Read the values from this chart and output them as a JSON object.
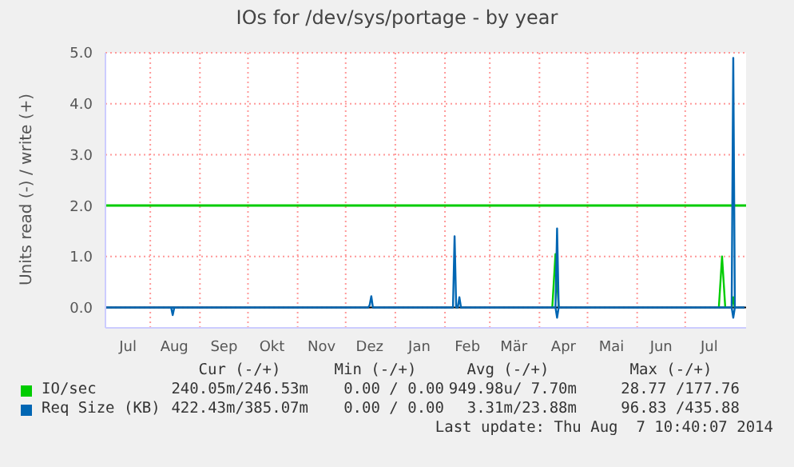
{
  "chart_data": {
    "type": "line",
    "title": "IOs for /dev/sys/portage - by year",
    "ylabel": "Units read (-) / write (+)",
    "xlim": [
      "2013-07-04",
      "2014-08-08"
    ],
    "xticks": [
      {
        "value": "2013-07-18",
        "label": "Jul"
      },
      {
        "value": "2013-08-01",
        "label": null
      },
      {
        "value": "2013-08-16",
        "label": "Aug"
      },
      {
        "value": "2013-09-01",
        "label": null
      },
      {
        "value": "2013-09-16",
        "label": "Sep"
      },
      {
        "value": "2013-10-01",
        "label": null
      },
      {
        "value": "2013-10-16",
        "label": "Okt"
      },
      {
        "value": "2013-11-01",
        "label": null
      },
      {
        "value": "2013-11-16",
        "label": "Nov"
      },
      {
        "value": "2013-12-01",
        "label": null
      },
      {
        "value": "2013-12-16",
        "label": "Dez"
      },
      {
        "value": "2014-01-01",
        "label": null
      },
      {
        "value": "2014-01-16",
        "label": "Jan"
      },
      {
        "value": "2014-02-01",
        "label": null
      },
      {
        "value": "2014-02-15",
        "label": "Feb"
      },
      {
        "value": "2014-03-01",
        "label": null
      },
      {
        "value": "2014-03-16",
        "label": "Mär"
      },
      {
        "value": "2014-04-01",
        "label": null
      },
      {
        "value": "2014-04-16",
        "label": "Apr"
      },
      {
        "value": "2014-05-01",
        "label": null
      },
      {
        "value": "2014-05-16",
        "label": "Mai"
      },
      {
        "value": "2014-06-01",
        "label": null
      },
      {
        "value": "2014-06-16",
        "label": "Jun"
      },
      {
        "value": "2014-07-01",
        "label": null
      },
      {
        "value": "2014-07-16",
        "label": "Jul"
      }
    ],
    "ylim": [
      -0.4,
      5.0
    ],
    "yticks": [
      {
        "value": 0,
        "label": "0.0"
      },
      {
        "value": 1,
        "label": "1.0"
      },
      {
        "value": 2,
        "label": "2.0"
      },
      {
        "value": 3,
        "label": "3.0"
      },
      {
        "value": 4,
        "label": "4.0"
      },
      {
        "value": 5,
        "label": "5.0"
      }
    ],
    "grid": true,
    "legend": "bottom",
    "ref_lines": [
      {
        "axis": "y",
        "value": 2,
        "color": "#00cc00"
      }
    ],
    "series": [
      {
        "name": "IO/sec",
        "color": "#00cc00",
        "x": [
          "2014-04-09",
          "2014-04-11",
          "2014-04-13",
          "2014-05-01",
          "2014-07-22",
          "2014-07-24",
          "2014-07-26",
          "2014-07-28",
          "2014-07-30",
          "2014-07-31",
          "2014-08-01"
        ],
        "values": [
          0,
          1.05,
          0,
          null,
          0,
          1.0,
          0,
          null,
          0,
          0.2,
          0
        ]
      },
      {
        "name": "Req Size (KB)",
        "color": "#0066b3",
        "x": [
          "2013-07-04",
          "2013-08-14",
          "2013-08-15",
          "2013-08-16",
          "2013-12-15",
          "2013-12-16",
          "2013-12-17",
          "2013-12-18",
          "2014-02-06",
          "2014-02-07",
          "2014-02-08",
          "2014-02-09",
          "2014-02-10",
          "2014-02-11",
          "2014-04-11",
          "2014-04-12",
          "2014-04-13",
          "2014-07-30",
          "2014-07-31",
          "2014-08-01",
          "2014-08-07"
        ],
        "values": [
          0,
          0,
          0,
          0,
          0,
          0.05,
          0.22,
          0,
          0,
          1.4,
          0,
          0,
          0.2,
          0,
          0,
          1.55,
          0,
          0,
          4.9,
          0,
          0
        ]
      },
      {
        "color": "#0066b3",
        "x": [
          "2013-08-14",
          "2013-08-15",
          "2013-08-16",
          "2013-09-01",
          "2014-04-11",
          "2014-04-12",
          "2014-04-13",
          "2014-05-01",
          "2014-07-30",
          "2014-07-31",
          "2014-08-01"
        ],
        "values": [
          0,
          -0.15,
          0,
          null,
          0,
          -0.2,
          0,
          null,
          0,
          -0.2,
          0
        ]
      }
    ],
    "annotations": [
      "Cur (-/+)",
      "Min (-/+)",
      "Avg (-/+)",
      "Max (-/+)",
      "240.05m/246.53m",
      "0.00 / 0.00",
      "949.98u/ 7.70m",
      "28.77 /177.76",
      "422.43m/385.07m",
      "0.00 / 0.00",
      "3.31m/23.88m",
      "96.83 /435.88",
      "Last update: Thu Aug  7 10:40:07 2014"
    ]
  }
}
